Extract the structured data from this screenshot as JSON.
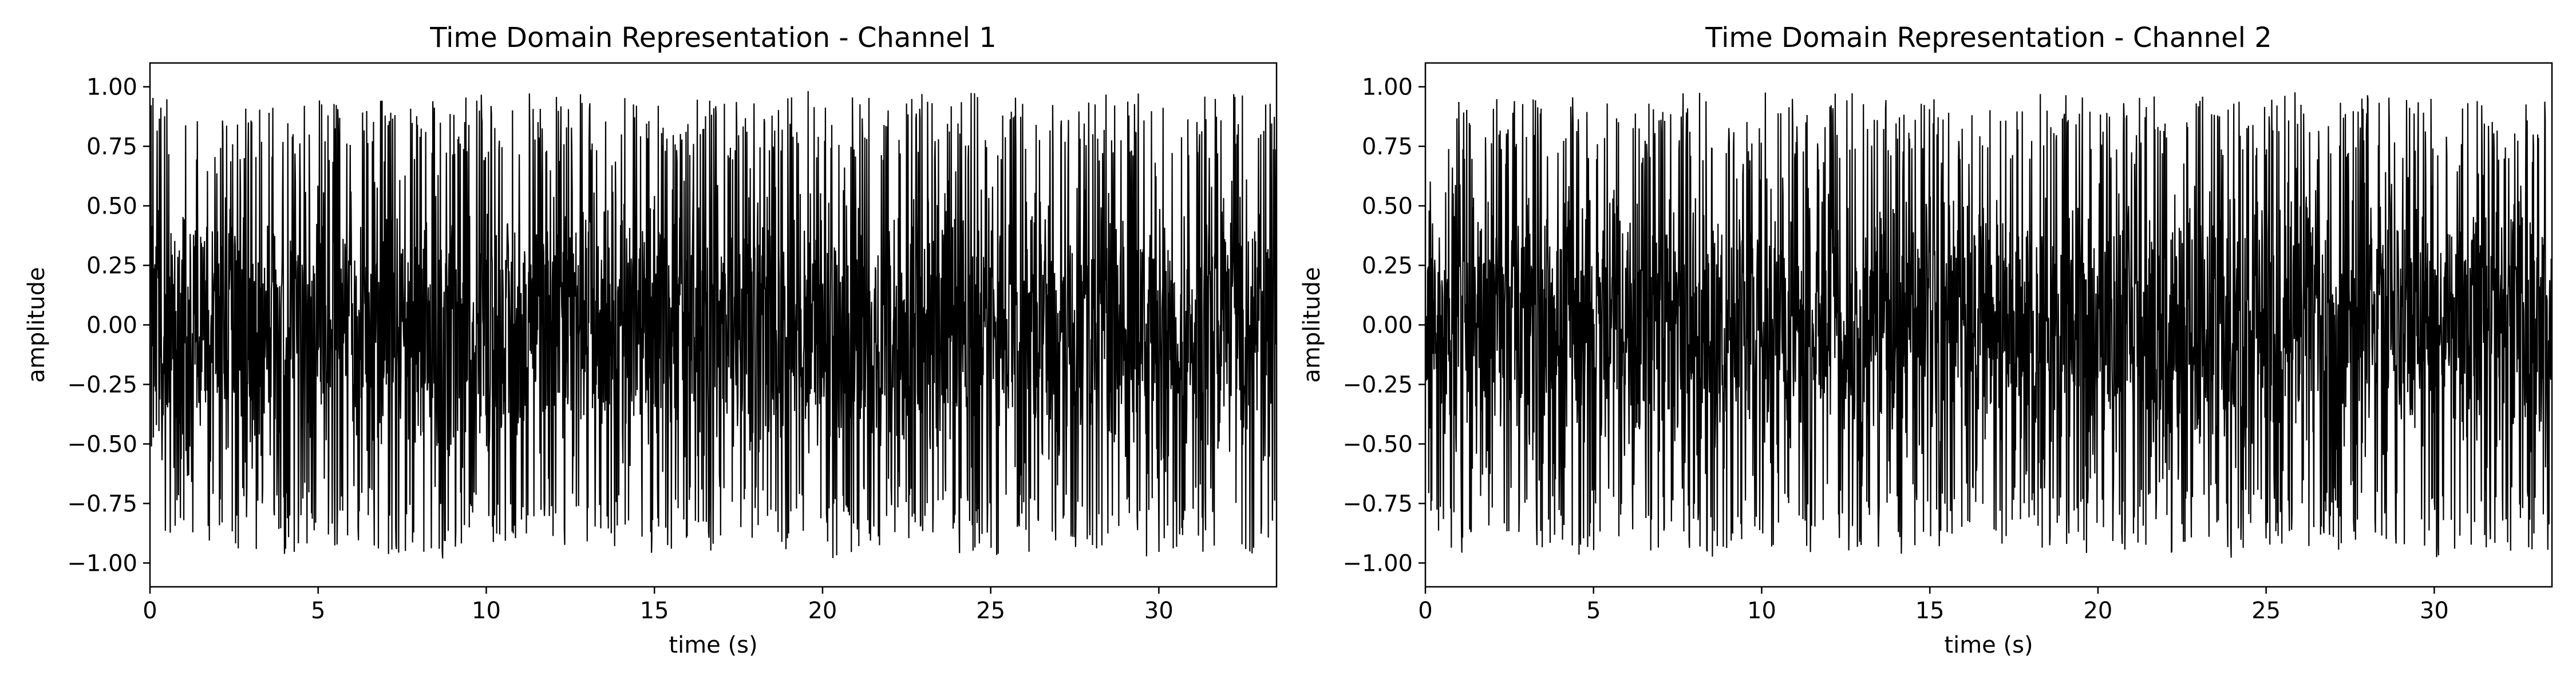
{
  "chart_data": [
    {
      "type": "line",
      "title": "Time Domain Representation - Channel 1",
      "xlabel": "time (s)",
      "ylabel": "amplitude",
      "xlim": [
        0,
        33.5
      ],
      "ylim": [
        -1.1,
        1.1
      ],
      "xticks": [
        0,
        5,
        10,
        15,
        20,
        25,
        30
      ],
      "xtick_labels": [
        "0",
        "5",
        "10",
        "15",
        "20",
        "25",
        "30"
      ],
      "yticks": [
        -1.0,
        -0.75,
        -0.5,
        -0.25,
        0.0,
        0.25,
        0.5,
        0.75,
        1.0
      ],
      "ytick_labels": [
        "−1.00",
        "−0.75",
        "−0.50",
        "−0.25",
        "0.00",
        "0.25",
        "0.50",
        "0.75",
        "1.00"
      ],
      "grid": false,
      "line_color": "#000000",
      "series": [
        {
          "x_start": 0,
          "x_end": 33.5,
          "amplitude_range": [
            -1.0,
            1.0
          ],
          "envelope": {
            "x": [
              0,
              1,
              2,
              3,
              4,
              5,
              6,
              7,
              8,
              9,
              10,
              11,
              12,
              13,
              14,
              15,
              16,
              17,
              18,
              19,
              20,
              21,
              22,
              23,
              24,
              25,
              26,
              27,
              28,
              29,
              30,
              31,
              32,
              33,
              33.5
            ],
            "max": [
              1.0,
              0.97,
              0.95,
              0.98,
              0.99,
              0.95,
              0.97,
              0.96,
              0.99,
              0.97,
              0.98,
              0.99,
              0.97,
              0.98,
              0.99,
              0.98,
              0.96,
              0.95,
              0.97,
              0.98,
              0.99,
              0.96,
              0.98,
              0.97,
              0.99,
              0.96,
              0.98,
              0.95,
              0.97,
              0.99,
              0.96,
              0.97,
              0.98,
              0.97,
              0.95
            ],
            "min": [
              -1.0,
              -0.96,
              -0.94,
              -0.95,
              -0.97,
              -0.92,
              -0.95,
              -0.98,
              -0.97,
              -0.99,
              -0.98,
              -0.97,
              -0.96,
              -0.95,
              -0.97,
              -0.96,
              -0.94,
              -0.97,
              -0.95,
              -0.96,
              -0.99,
              -0.97,
              -0.96,
              -0.95,
              -0.98,
              -0.97,
              -0.96,
              -0.95,
              -0.97,
              -0.96,
              -0.98,
              -0.95,
              -0.97,
              -0.96,
              -0.94
            ]
          }
        }
      ]
    },
    {
      "type": "line",
      "title": "Time Domain Representation - Channel 2",
      "xlabel": "time (s)",
      "ylabel": "amplitude",
      "xlim": [
        0,
        33.5
      ],
      "ylim": [
        -1.1,
        1.1
      ],
      "xticks": [
        0,
        5,
        10,
        15,
        20,
        25,
        30
      ],
      "xtick_labels": [
        "0",
        "5",
        "10",
        "15",
        "20",
        "25",
        "30"
      ],
      "yticks": [
        -1.0,
        -0.75,
        -0.5,
        -0.25,
        0.0,
        0.25,
        0.5,
        0.75,
        1.0
      ],
      "ytick_labels": [
        "−1.00",
        "−0.75",
        "−0.50",
        "−0.25",
        "0.00",
        "0.25",
        "0.50",
        "0.75",
        "1.00"
      ],
      "grid": false,
      "line_color": "#000000",
      "series": [
        {
          "x_start": 0,
          "x_end": 33.5,
          "amplitude_range": [
            -1.0,
            1.0
          ],
          "envelope": {
            "x": [
              0,
              1,
              2,
              3,
              4,
              5,
              6,
              7,
              8,
              9,
              10,
              11,
              12,
              13,
              14,
              15,
              16,
              17,
              18,
              19,
              20,
              21,
              22,
              23,
              24,
              25,
              26,
              27,
              28,
              29,
              30,
              31,
              32,
              33,
              33.5
            ],
            "max": [
              0.55,
              0.97,
              0.95,
              0.98,
              0.96,
              0.95,
              0.97,
              0.96,
              0.98,
              0.97,
              0.98,
              0.99,
              0.97,
              0.98,
              0.96,
              0.97,
              0.96,
              0.95,
              0.97,
              0.98,
              0.97,
              0.96,
              0.98,
              0.97,
              0.99,
              0.96,
              0.98,
              0.95,
              0.97,
              0.98,
              0.96,
              0.97,
              0.98,
              0.97,
              0.98
            ],
            "min": [
              -0.95,
              -0.96,
              -0.94,
              -0.95,
              -0.97,
              -0.99,
              -0.95,
              -0.98,
              -0.97,
              -0.99,
              -0.98,
              -0.97,
              -0.96,
              -0.95,
              -0.97,
              -0.96,
              -0.94,
              -0.97,
              -0.95,
              -0.96,
              -0.97,
              -0.97,
              -0.96,
              -0.95,
              -0.98,
              -0.97,
              -0.96,
              -0.95,
              -0.97,
              -0.96,
              -0.98,
              -0.95,
              -0.97,
              -0.96,
              -0.99
            ]
          }
        }
      ]
    }
  ]
}
